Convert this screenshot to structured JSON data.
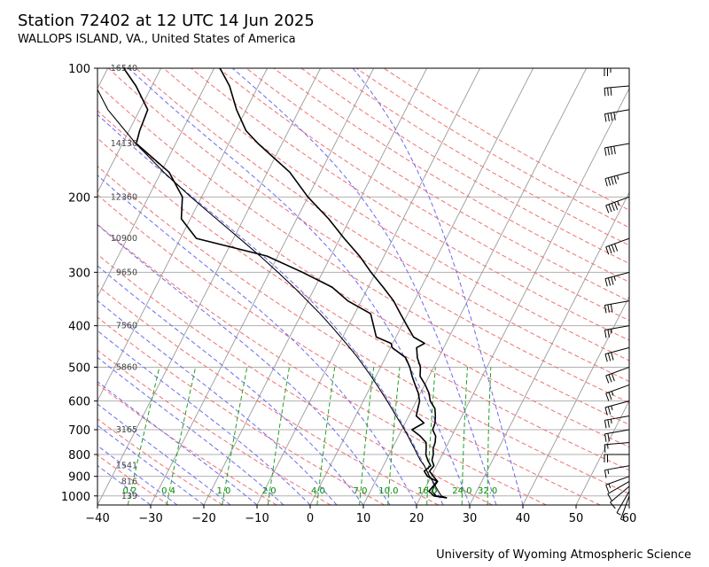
{
  "header": {
    "title": "Station 72402 at 12 UTC 14 Jun 2025",
    "subtitle": "WALLOPS ISLAND, VA., United States of America"
  },
  "footer": {
    "credit": "University of Wyoming Atmospheric Science"
  },
  "chart_data": {
    "type": "skew-t log-p",
    "title": "Station 72402 at 12 UTC 14 Jun 2025",
    "subtitle": "WALLOPS ISLAND, VA., United States of America",
    "xlabel": "",
    "ylabel": "",
    "x_ticks": [
      -40,
      -30,
      -20,
      -10,
      0,
      10,
      20,
      30,
      40,
      50,
      60
    ],
    "y_ticks": [
      100,
      200,
      300,
      400,
      500,
      600,
      700,
      800,
      900,
      1000
    ],
    "xlim": [
      -40,
      60
    ],
    "ylim": [
      1050,
      100
    ],
    "y_scale": "log",
    "grid": true,
    "height_labels": [
      {
        "p": 100,
        "h": "16540"
      },
      {
        "p": 150,
        "h": "14130"
      },
      {
        "p": 200,
        "h": "12360"
      },
      {
        "p": 250,
        "h": "10900"
      },
      {
        "p": 300,
        "h": "9650"
      },
      {
        "p": 400,
        "h": "7560"
      },
      {
        "p": 500,
        "h": "5860"
      },
      {
        "p": 700,
        "h": "3165"
      },
      {
        "p": 850,
        "h": "1541"
      },
      {
        "p": 925,
        "h": "816"
      },
      {
        "p": 1000,
        "h": "139"
      }
    ],
    "mixing_ratio_labels": [
      "0.2",
      "0.4",
      "1.0",
      "2.0",
      "4.0",
      "7.0",
      "10.0",
      "16.0",
      "24.0",
      "32.0"
    ],
    "series": [
      {
        "kind": "temperature",
        "color": "#000000",
        "points": [
          [
            1010,
            25.0
          ],
          [
            1000,
            22.8
          ],
          [
            975,
            21.6
          ],
          [
            950,
            21.5
          ],
          [
            925,
            21.7
          ],
          [
            900,
            20.4
          ],
          [
            875,
            19.2
          ],
          [
            850,
            19.5
          ],
          [
            825,
            18.6
          ],
          [
            800,
            18.3
          ],
          [
            775,
            17.7
          ],
          [
            750,
            17.5
          ],
          [
            725,
            17.0
          ],
          [
            700,
            15.8
          ],
          [
            675,
            15.6
          ],
          [
            650,
            15.0
          ],
          [
            625,
            14.2
          ],
          [
            600,
            12.6
          ],
          [
            575,
            11.6
          ],
          [
            550,
            10.1
          ],
          [
            525,
            8.3
          ],
          [
            500,
            7.5
          ],
          [
            475,
            6.0
          ],
          [
            450,
            4.9
          ],
          [
            440,
            6.0
          ],
          [
            425,
            3.3
          ],
          [
            400,
            1.0
          ],
          [
            375,
            -1.4
          ],
          [
            350,
            -3.9
          ],
          [
            325,
            -7.2
          ],
          [
            300,
            -10.9
          ],
          [
            275,
            -14.6
          ],
          [
            250,
            -19.2
          ],
          [
            225,
            -24.0
          ],
          [
            200,
            -30.0
          ],
          [
            175,
            -35.8
          ],
          [
            150,
            -44.5
          ],
          [
            140,
            -48.0
          ],
          [
            125,
            -51.8
          ],
          [
            110,
            -55.4
          ],
          [
            100,
            -58.9
          ]
        ]
      },
      {
        "kind": "dewpoint",
        "color": "#000000",
        "points": [
          [
            1010,
            25.0
          ],
          [
            1000,
            22.4
          ],
          [
            975,
            21.0
          ],
          [
            950,
            21.3
          ],
          [
            925,
            21.6
          ],
          [
            900,
            19.3
          ],
          [
            875,
            18.2
          ],
          [
            850,
            18.9
          ],
          [
            825,
            17.8
          ],
          [
            800,
            16.9
          ],
          [
            775,
            16.4
          ],
          [
            750,
            15.8
          ],
          [
            725,
            14.1
          ],
          [
            700,
            11.9
          ],
          [
            675,
            13.5
          ],
          [
            650,
            11.4
          ],
          [
            625,
            11.0
          ],
          [
            600,
            10.6
          ],
          [
            575,
            9.6
          ],
          [
            550,
            8.2
          ],
          [
            525,
            6.8
          ],
          [
            500,
            5.5
          ],
          [
            475,
            3.8
          ],
          [
            450,
            0.3
          ],
          [
            440,
            -0.3
          ],
          [
            425,
            -3.7
          ],
          [
            400,
            -5.3
          ],
          [
            375,
            -7.0
          ],
          [
            350,
            -12.5
          ],
          [
            325,
            -16.8
          ],
          [
            300,
            -23.8
          ],
          [
            275,
            -32.0
          ],
          [
            250,
            -47.0
          ],
          [
            225,
            -51.7
          ],
          [
            200,
            -53.6
          ],
          [
            175,
            -58.5
          ],
          [
            150,
            -67.4
          ],
          [
            140,
            -68.0
          ],
          [
            125,
            -68.5
          ],
          [
            110,
            -73.0
          ],
          [
            100,
            -77.0
          ]
        ]
      },
      {
        "kind": "parcel",
        "color": "#000000",
        "points": [
          [
            1010,
            25.0
          ],
          [
            1000,
            23.8
          ],
          [
            975,
            22.8
          ],
          [
            950,
            21.8
          ],
          [
            925,
            20.8
          ],
          [
            900,
            19.7
          ],
          [
            875,
            18.7
          ],
          [
            850,
            17.7
          ],
          [
            825,
            16.4
          ],
          [
            800,
            15.3
          ],
          [
            775,
            14.2
          ],
          [
            750,
            13.0
          ],
          [
            725,
            11.8
          ],
          [
            700,
            10.5
          ],
          [
            675,
            9.1
          ],
          [
            650,
            7.6
          ],
          [
            625,
            6.1
          ],
          [
            600,
            4.5
          ],
          [
            575,
            2.8
          ],
          [
            550,
            1.0
          ],
          [
            525,
            -0.9
          ],
          [
            500,
            -3.0
          ],
          [
            475,
            -5.2
          ],
          [
            450,
            -7.7
          ],
          [
            425,
            -10.4
          ],
          [
            400,
            -13.3
          ],
          [
            375,
            -16.5
          ],
          [
            350,
            -20.1
          ],
          [
            325,
            -24.0
          ],
          [
            300,
            -28.4
          ],
          [
            275,
            -33.3
          ],
          [
            250,
            -38.9
          ],
          [
            225,
            -45.1
          ],
          [
            200,
            -52.0
          ],
          [
            175,
            -59.5
          ],
          [
            150,
            -67.5
          ],
          [
            125,
            -76.0
          ],
          [
            100,
            -84.0
          ]
        ]
      }
    ],
    "wind_barbs": [
      {
        "p": 1000,
        "dir": 200,
        "spd": 5
      },
      {
        "p": 975,
        "dir": 210,
        "spd": 5
      },
      {
        "p": 950,
        "dir": 230,
        "spd": 10
      },
      {
        "p": 925,
        "dir": 240,
        "spd": 10
      },
      {
        "p": 900,
        "dir": 250,
        "spd": 15
      },
      {
        "p": 850,
        "dir": 260,
        "spd": 15
      },
      {
        "p": 800,
        "dir": 270,
        "spd": 20
      },
      {
        "p": 750,
        "dir": 265,
        "spd": 15
      },
      {
        "p": 700,
        "dir": 260,
        "spd": 20
      },
      {
        "p": 650,
        "dir": 260,
        "spd": 25
      },
      {
        "p": 600,
        "dir": 255,
        "spd": 25
      },
      {
        "p": 550,
        "dir": 250,
        "spd": 25
      },
      {
        "p": 500,
        "dir": 250,
        "spd": 30
      },
      {
        "p": 450,
        "dir": 255,
        "spd": 30
      },
      {
        "p": 400,
        "dir": 260,
        "spd": 25
      },
      {
        "p": 350,
        "dir": 260,
        "spd": 30
      },
      {
        "p": 300,
        "dir": 255,
        "spd": 35
      },
      {
        "p": 250,
        "dir": 250,
        "spd": 40
      },
      {
        "p": 200,
        "dir": 250,
        "spd": 45
      },
      {
        "p": 175,
        "dir": 255,
        "spd": 45
      },
      {
        "p": 150,
        "dir": 260,
        "spd": 40
      },
      {
        "p": 125,
        "dir": 260,
        "spd": 40
      },
      {
        "p": 110,
        "dir": 265,
        "spd": 30
      },
      {
        "p": 100,
        "dir": 270,
        "spd": 25
      }
    ]
  }
}
